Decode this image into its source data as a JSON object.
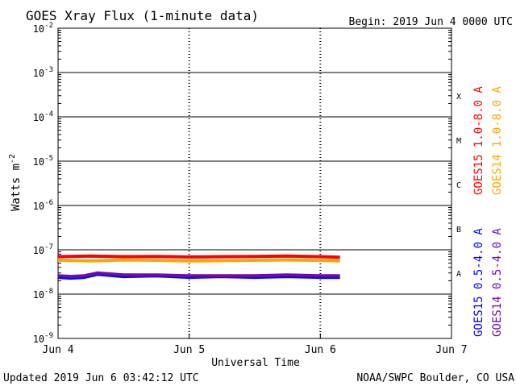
{
  "chart_data": {
    "type": "line",
    "title": "GOES Xray Flux (1-minute data)",
    "begin_label": "Begin:  2019 Jun 4 0000 UTC",
    "xlabel": "Universal Time",
    "ylabel": "Watts m",
    "ylabel_sup": "-2",
    "yscale": "log",
    "ylim": [
      1e-09,
      0.01
    ],
    "xlim": [
      0,
      3
    ],
    "x_unit": "days since 2019 Jun 4 0000 UTC",
    "y_ticks": [
      {
        "exp": -2,
        "base": "10",
        "sup": "-2"
      },
      {
        "exp": -3,
        "base": "10",
        "sup": "-3"
      },
      {
        "exp": -4,
        "base": "10",
        "sup": "-4"
      },
      {
        "exp": -5,
        "base": "10",
        "sup": "-5"
      },
      {
        "exp": -6,
        "base": "10",
        "sup": "-6"
      },
      {
        "exp": -7,
        "base": "10",
        "sup": "-7"
      },
      {
        "exp": -8,
        "base": "10",
        "sup": "-8"
      },
      {
        "exp": -9,
        "base": "10",
        "sup": "-9"
      }
    ],
    "x_ticks": [
      {
        "x": 0,
        "label": "Jun 4"
      },
      {
        "x": 1,
        "label": "Jun 5"
      },
      {
        "x": 2,
        "label": "Jun 6"
      },
      {
        "x": 3,
        "label": "Jun 7"
      }
    ],
    "flare_classes": [
      {
        "label": "X",
        "exp": -4
      },
      {
        "label": "M",
        "exp": -5
      },
      {
        "label": "C",
        "exp": -6
      },
      {
        "label": "B",
        "exp": -7
      },
      {
        "label": "A",
        "exp": -8
      }
    ],
    "grid": "horizontal lines at each decade from 1e-8 to 1e-3, dotted vertical lines at each day",
    "legend_placement": "right side, vertical text",
    "series": [
      {
        "name": "GOES15 1.0-8.0 A",
        "color": "#ff0000",
        "x": [
          0.0,
          0.25,
          0.5,
          0.75,
          1.0,
          1.25,
          1.5,
          1.75,
          2.0,
          2.15
        ],
        "y": [
          7e-08,
          7.2e-08,
          7e-08,
          7.1e-08,
          6.9e-08,
          7e-08,
          7.1e-08,
          7.2e-08,
          7e-08,
          6.8e-08
        ]
      },
      {
        "name": "GOES14 1.0-8.0 A",
        "color": "#ffa500",
        "x": [
          0.0,
          0.25,
          0.5,
          0.75,
          1.0,
          1.25,
          1.5,
          1.75,
          2.0,
          2.15
        ],
        "y": [
          5.8e-08,
          5.6e-08,
          5.9e-08,
          5.8e-08,
          5.6e-08,
          5.7e-08,
          5.8e-08,
          5.9e-08,
          5.8e-08,
          5.6e-08
        ]
      },
      {
        "name": "GOES15 0.5-4.0 A",
        "color": "#0000ff",
        "x": [
          0.0,
          0.1,
          0.2,
          0.3,
          0.5,
          0.75,
          1.0,
          1.25,
          1.5,
          1.75,
          2.0,
          2.15
        ],
        "y": [
          2.4e-08,
          2.3e-08,
          2.4e-08,
          2.8e-08,
          2.5e-08,
          2.6e-08,
          2.4e-08,
          2.5e-08,
          2.4e-08,
          2.5e-08,
          2.4e-08,
          2.4e-08
        ]
      },
      {
        "name": "GOES14 0.5-4.0 A",
        "color": "#6a0dad",
        "x": [
          0.0,
          0.1,
          0.2,
          0.3,
          0.5,
          0.75,
          1.0,
          1.25,
          1.5,
          1.75,
          2.0,
          2.15
        ],
        "y": [
          2.6e-08,
          2.5e-08,
          2.6e-08,
          3e-08,
          2.7e-08,
          2.7e-08,
          2.6e-08,
          2.6e-08,
          2.6e-08,
          2.7e-08,
          2.6e-08,
          2.6e-08
        ]
      }
    ]
  },
  "footer": {
    "updated": "Updated 2019 Jun  6 03:42:12 UTC",
    "credit": "NOAA/SWPC Boulder, CO USA"
  }
}
